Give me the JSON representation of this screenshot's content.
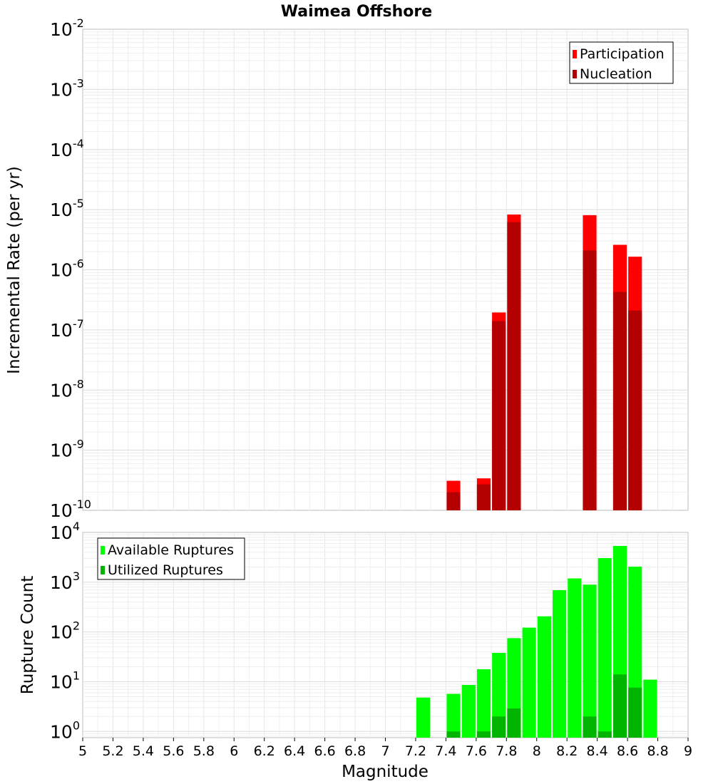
{
  "chart_data": [
    {
      "type": "bar",
      "title": "Waimea Offshore",
      "xlabel": "Magnitude",
      "ylabel": "Incremental Rate (per yr)",
      "yscale": "log",
      "xlim": [
        5,
        9
      ],
      "ylim": [
        1e-10,
        0.01
      ],
      "ytick_base": "10",
      "ytick_exponents": [
        "-10",
        "-9",
        "-8",
        "-7",
        "-6",
        "-5",
        "-4",
        "-3",
        "-2"
      ],
      "legend": "top-right",
      "colors": {
        "Participation": "#ff0000",
        "Nucleation": "#b40000"
      },
      "series": [
        {
          "name": "Participation",
          "x": [
            7.45,
            7.65,
            7.75,
            7.85,
            8.35,
            8.55,
            8.65
          ],
          "values": [
            3.1e-10,
            3.4e-10,
            1.95e-07,
            8.3e-06,
            8.1e-06,
            2.6e-06,
            1.65e-06
          ]
        },
        {
          "name": "Nucleation",
          "x": [
            7.45,
            7.65,
            7.75,
            7.85,
            8.35,
            8.55,
            8.65
          ],
          "values": [
            2e-10,
            2.7e-10,
            1.4e-07,
            6.2e-06,
            2.1e-06,
            4.3e-07,
            2.1e-07
          ]
        }
      ]
    },
    {
      "type": "bar",
      "title": "",
      "xlabel": "Magnitude",
      "ylabel": "Rupture Count",
      "yscale": "log",
      "xlim": [
        5,
        9
      ],
      "ylim": [
        0.75,
        10000
      ],
      "ytick_base": "10",
      "ytick_exponents": [
        "0",
        "1",
        "2",
        "3",
        "4"
      ],
      "xticks": [
        "5",
        "5.2",
        "5.4",
        "5.6",
        "5.8",
        "6",
        "6.2",
        "6.4",
        "6.6",
        "6.8",
        "7",
        "7.2",
        "7.4",
        "7.6",
        "7.8",
        "8",
        "8.2",
        "8.4",
        "8.6",
        "8.8",
        "9"
      ],
      "legend": "top-left",
      "colors": {
        "Available Ruptures": "#00ff00",
        "Utilized Ruptures": "#00b400"
      },
      "series": [
        {
          "name": "Available Ruptures",
          "x": [
            7.25,
            7.45,
            7.55,
            7.65,
            7.75,
            7.85,
            7.95,
            8.05,
            8.15,
            8.25,
            8.35,
            8.45,
            8.55,
            8.65,
            8.75
          ],
          "values": [
            4.8,
            5.7,
            8.6,
            17.8,
            38,
            75,
            122,
            206,
            690,
            1190,
            890,
            3050,
            5350,
            2050,
            11
          ]
        },
        {
          "name": "Utilized Ruptures",
          "x": [
            7.45,
            7.65,
            7.75,
            7.85,
            8.35,
            8.45,
            8.55,
            8.65
          ],
          "values": [
            1,
            1,
            2,
            2.9,
            2,
            1,
            14,
            7.6
          ]
        }
      ]
    }
  ]
}
